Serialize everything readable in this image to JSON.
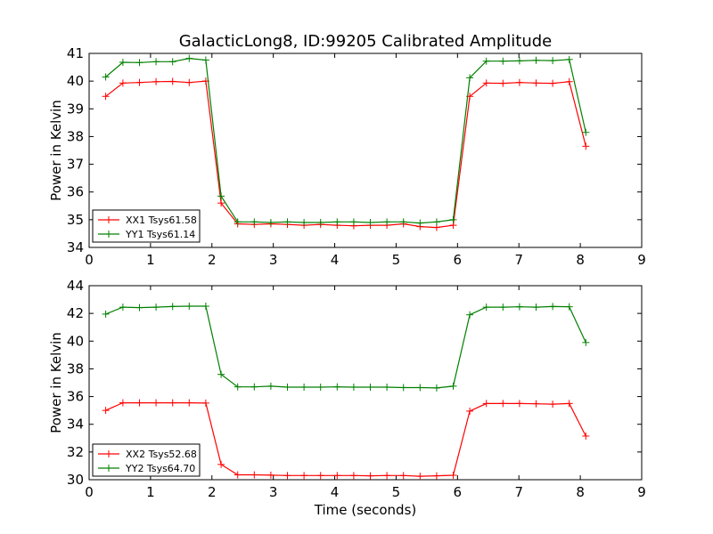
{
  "chart_data": {
    "type": "line",
    "title": "GalacticLong8, ID:99205 Calibrated Amplitude",
    "xlabel": "Time (seconds)",
    "colors": {
      "red": "#ff0000",
      "green": "#008000"
    },
    "panels": [
      {
        "ylabel": "Power in Kelvin",
        "xlim": [
          0,
          9
        ],
        "ylim": [
          34,
          41
        ],
        "xticks": [
          "0",
          "1",
          "2",
          "3",
          "4",
          "5",
          "6",
          "7",
          "8",
          "9"
        ],
        "yticks": [
          "34",
          "35",
          "36",
          "37",
          "38",
          "39",
          "40",
          "41"
        ],
        "x": [
          0.27,
          0.55,
          0.82,
          1.09,
          1.36,
          1.63,
          1.9,
          2.18,
          2.45,
          2.72,
          2.99,
          3.26,
          3.54,
          3.81,
          4.08,
          4.35,
          4.62,
          4.9,
          5.17,
          5.44,
          5.71,
          5.98,
          6.25,
          6.53,
          6.8,
          7.07,
          7.34,
          7.61,
          7.89,
          8.16
        ],
        "x_note": "",
        "series": [
          {
            "name": "XX1 Tsys61.58",
            "color": "#ff0000",
            "x": [
              0.27,
              0.55,
              0.82,
              1.09,
              1.36,
              1.63,
              1.9,
              2.15,
              2.42,
              2.69,
              2.96,
              3.23,
              3.5,
              3.77,
              4.04,
              4.31,
              4.58,
              4.85,
              5.12,
              5.39,
              5.66,
              5.93,
              6.2,
              6.47,
              6.74,
              7.01,
              7.28,
              7.55,
              7.82,
              8.09
            ],
            "values": [
              39.45,
              39.93,
              39.95,
              39.98,
              39.99,
              39.95,
              40.0,
              35.6,
              34.85,
              34.83,
              34.85,
              34.83,
              34.8,
              34.83,
              34.8,
              34.78,
              34.8,
              34.8,
              34.85,
              34.75,
              34.72,
              34.8,
              39.45,
              39.93,
              39.92,
              39.95,
              39.93,
              39.92,
              39.98,
              37.65
            ]
          },
          {
            "name": "YY1 Tsys61.14",
            "color": "#008000",
            "x": [
              0.27,
              0.55,
              0.82,
              1.09,
              1.36,
              1.63,
              1.9,
              2.15,
              2.42,
              2.69,
              2.96,
              3.23,
              3.5,
              3.77,
              4.04,
              4.31,
              4.58,
              4.85,
              5.12,
              5.39,
              5.66,
              5.93,
              6.2,
              6.47,
              6.74,
              7.01,
              7.28,
              7.55,
              7.82,
              8.09
            ],
            "values": [
              40.15,
              40.68,
              40.67,
              40.7,
              40.7,
              40.82,
              40.76,
              35.85,
              34.92,
              34.92,
              34.9,
              34.92,
              34.9,
              34.9,
              34.92,
              34.92,
              34.9,
              34.92,
              34.92,
              34.88,
              34.92,
              35.0,
              40.12,
              40.72,
              40.72,
              40.73,
              40.75,
              40.74,
              40.78,
              38.15
            ]
          }
        ]
      },
      {
        "ylabel": "Power in Kelvin",
        "xlim": [
          0,
          9
        ],
        "ylim": [
          30,
          44
        ],
        "xticks": [
          "0",
          "1",
          "2",
          "3",
          "4",
          "5",
          "6",
          "7",
          "8",
          "9"
        ],
        "yticks": [
          "30",
          "32",
          "34",
          "36",
          "38",
          "40",
          "42",
          "44"
        ],
        "series": [
          {
            "name": "XX2 Tsys52.68",
            "color": "#ff0000",
            "x": [
              0.27,
              0.55,
              0.82,
              1.09,
              1.36,
              1.63,
              1.9,
              2.15,
              2.42,
              2.69,
              2.96,
              3.23,
              3.5,
              3.77,
              4.04,
              4.31,
              4.58,
              4.85,
              5.12,
              5.39,
              5.66,
              5.93,
              6.2,
              6.47,
              6.74,
              7.01,
              7.28,
              7.55,
              7.82,
              8.09
            ],
            "values": [
              35.0,
              35.55,
              35.55,
              35.55,
              35.55,
              35.55,
              35.53,
              31.1,
              30.35,
              30.35,
              30.33,
              30.3,
              30.3,
              30.3,
              30.3,
              30.3,
              30.28,
              30.3,
              30.3,
              30.25,
              30.28,
              30.32,
              34.95,
              35.5,
              35.5,
              35.5,
              35.48,
              35.45,
              35.5,
              33.15
            ]
          },
          {
            "name": "YY2 Tsys64.70",
            "color": "#008000",
            "x": [
              0.27,
              0.55,
              0.82,
              1.09,
              1.36,
              1.63,
              1.9,
              2.15,
              2.42,
              2.69,
              2.96,
              3.23,
              3.5,
              3.77,
              4.04,
              4.31,
              4.58,
              4.85,
              5.12,
              5.39,
              5.66,
              5.93,
              6.2,
              6.47,
              6.74,
              7.01,
              7.28,
              7.55,
              7.82,
              8.09
            ],
            "values": [
              41.95,
              42.45,
              42.42,
              42.45,
              42.5,
              42.52,
              42.52,
              37.6,
              36.7,
              36.7,
              36.75,
              36.68,
              36.68,
              36.68,
              36.7,
              36.68,
              36.68,
              36.68,
              36.65,
              36.65,
              36.62,
              36.75,
              41.9,
              42.45,
              42.45,
              42.48,
              42.45,
              42.5,
              42.48,
              39.9
            ]
          }
        ]
      }
    ]
  }
}
